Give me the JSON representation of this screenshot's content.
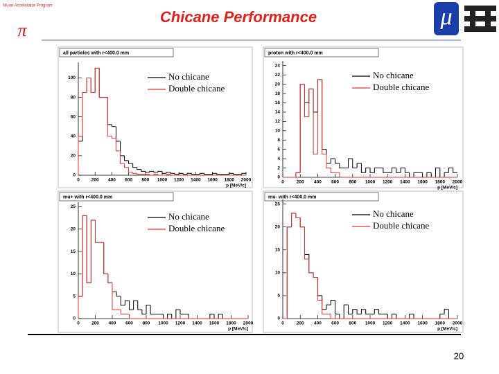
{
  "title": "Chicane Performance",
  "page_number": "20",
  "logo_left": "Muon Accelerator Program",
  "logo_right": "μ",
  "chart_data": [
    {
      "type": "histogram",
      "title": "all particles with r<400.0 mm",
      "xlabel": "p [MeV/c]",
      "bins": [
        0,
        50,
        100,
        150,
        200,
        250,
        300,
        350,
        400,
        450,
        500,
        550,
        600,
        650,
        700,
        750,
        800,
        850,
        900,
        950,
        1000,
        1050,
        1100,
        1150,
        1200,
        1250,
        1300,
        1350,
        1400,
        1450,
        1500,
        1550,
        1600,
        1650,
        1700,
        1750,
        1800,
        1850,
        1900,
        1950,
        2000
      ],
      "series": [
        {
          "name": "No chicane",
          "color": "#000000",
          "values": [
            35,
            85,
            100,
            85,
            110,
            80,
            80,
            52,
            50,
            35,
            20,
            15,
            12,
            8,
            6,
            4,
            3,
            4,
            3,
            4,
            2,
            3,
            2,
            1,
            2,
            1,
            2,
            1,
            1,
            2,
            1,
            1,
            2,
            1,
            1,
            1,
            2,
            1,
            1,
            2
          ]
        },
        {
          "name": "Double chicane",
          "color": "#e8302a",
          "values": [
            40,
            85,
            100,
            85,
            110,
            80,
            80,
            40,
            38,
            25,
            12,
            8,
            3,
            2,
            1,
            1,
            1,
            0,
            1,
            0,
            0,
            1,
            0,
            0,
            0,
            0,
            0,
            0,
            0,
            0,
            0,
            0,
            0,
            0,
            0,
            0,
            0,
            0,
            0,
            0
          ]
        }
      ],
      "xlim": [
        0,
        2000
      ],
      "xticks": [
        0,
        200,
        400,
        600,
        800,
        1000,
        1200,
        1400,
        1600,
        1800,
        2000
      ],
      "ylim": [
        0,
        116
      ],
      "yticks": [
        0,
        20,
        40,
        60,
        80,
        100
      ]
    },
    {
      "type": "histogram",
      "title": "proton with r<400.0 mm",
      "xlabel": "p [MeV/c]",
      "bins": [
        0,
        50,
        100,
        150,
        200,
        250,
        300,
        350,
        400,
        450,
        500,
        550,
        600,
        650,
        700,
        750,
        800,
        850,
        900,
        950,
        1000,
        1050,
        1100,
        1150,
        1200,
        1250,
        1300,
        1350,
        1400,
        1450,
        1500,
        1550,
        1600,
        1650,
        1700,
        1750,
        1800,
        1850,
        1900,
        1950,
        2000
      ],
      "series": [
        {
          "name": "No chicane",
          "color": "#000000",
          "values": [
            0,
            0,
            0,
            1,
            20,
            16,
            19,
            14,
            21,
            6,
            3,
            4,
            3,
            2,
            2,
            4,
            2,
            3,
            1,
            2,
            1,
            2,
            2,
            1,
            1,
            2,
            1,
            2,
            1,
            0,
            1,
            1,
            0,
            1,
            0,
            2,
            0,
            1,
            2,
            1
          ]
        },
        {
          "name": "Double chicane",
          "color": "#e8302a",
          "values": [
            0,
            0,
            0,
            1,
            20,
            13,
            19,
            5,
            21,
            5,
            2,
            1,
            1,
            0,
            0,
            0,
            0,
            0,
            0,
            0,
            0,
            0,
            0,
            0,
            0,
            0,
            0,
            0,
            0,
            0,
            0,
            0,
            0,
            0,
            0,
            0,
            0,
            0,
            0,
            0
          ]
        }
      ],
      "xlim": [
        0,
        2000
      ],
      "xticks": [
        0,
        200,
        400,
        600,
        800,
        1000,
        1200,
        1400,
        1600,
        1800,
        2000
      ],
      "ylim": [
        0,
        25
      ],
      "yticks": [
        0,
        2,
        4,
        6,
        8,
        10,
        12,
        14,
        16,
        18,
        20,
        22,
        24
      ]
    },
    {
      "type": "histogram",
      "title": "mu+ with r<400.0 mm",
      "xlabel": "p [MeV/c]",
      "bins": [
        0,
        50,
        100,
        150,
        200,
        250,
        300,
        350,
        400,
        450,
        500,
        550,
        600,
        650,
        700,
        750,
        800,
        850,
        900,
        950,
        1000,
        1050,
        1100,
        1150,
        1200,
        1250,
        1300,
        1350,
        1400,
        1450,
        1500,
        1550,
        1600,
        1650,
        1700,
        1750,
        1800,
        1850,
        1900,
        1950,
        2000
      ],
      "series": [
        {
          "name": "No chicane",
          "color": "#000000",
          "values": [
            5,
            23,
            8,
            22,
            17,
            17,
            10,
            8,
            6,
            5,
            3,
            4,
            2,
            4,
            2,
            1,
            3,
            1,
            1,
            1,
            0,
            1,
            0,
            2,
            1,
            1,
            0,
            0,
            0,
            0,
            0,
            1,
            0,
            1,
            0,
            0,
            0,
            0,
            0,
            0
          ]
        },
        {
          "name": "Double chicane",
          "color": "#e8302a",
          "values": [
            5,
            23,
            8,
            22,
            17,
            17,
            10,
            8,
            2,
            2,
            1,
            1,
            0,
            0,
            0,
            0,
            0,
            0,
            0,
            0,
            0,
            0,
            0,
            0,
            0,
            0,
            0,
            0,
            0,
            0,
            0,
            0,
            0,
            0,
            0,
            0,
            0,
            0,
            0,
            0
          ]
        }
      ],
      "xlim": [
        0,
        2000
      ],
      "xticks": [
        0,
        200,
        400,
        600,
        800,
        1000,
        1200,
        1400,
        1600,
        1800,
        2000
      ],
      "ylim": [
        0,
        26
      ],
      "yticks": [
        0,
        5,
        10,
        15,
        20,
        25
      ]
    },
    {
      "type": "histogram",
      "title": "mu- with r<400.0 mm",
      "xlabel": "p [MeV/c]",
      "bins": [
        0,
        50,
        100,
        150,
        200,
        250,
        300,
        350,
        400,
        450,
        500,
        550,
        600,
        650,
        700,
        750,
        800,
        850,
        900,
        950,
        1000,
        1050,
        1100,
        1150,
        1200,
        1250,
        1300,
        1350,
        1400,
        1450,
        1500,
        1550,
        1600,
        1650,
        1700,
        1750,
        1800,
        1850,
        1900,
        1950,
        2000
      ],
      "series": [
        {
          "name": "No chicane",
          "color": "#000000",
          "values": [
            0,
            20,
            23,
            22,
            20,
            14,
            10,
            9,
            5,
            2,
            3,
            4,
            1,
            0,
            3,
            1,
            2,
            1,
            2,
            1,
            1,
            2,
            1,
            1,
            0,
            1,
            0,
            0,
            0,
            1,
            0,
            0,
            0,
            0,
            0,
            0,
            1,
            2,
            0,
            0
          ]
        },
        {
          "name": "Double chicane",
          "color": "#e8302a",
          "values": [
            0,
            20,
            23,
            22,
            20,
            13,
            10,
            9,
            4,
            1,
            1,
            0,
            0,
            0,
            0,
            0,
            0,
            0,
            0,
            0,
            0,
            0,
            0,
            0,
            0,
            0,
            0,
            0,
            0,
            0,
            0,
            0,
            0,
            0,
            0,
            0,
            0,
            0,
            0,
            0
          ]
        }
      ],
      "xlim": [
        0,
        2000
      ],
      "xticks": [
        0,
        200,
        400,
        600,
        800,
        1000,
        1200,
        1400,
        1600,
        1800,
        2000
      ],
      "ylim": [
        0,
        26
      ],
      "yticks": [
        0,
        5,
        10,
        15,
        20,
        25
      ]
    }
  ]
}
